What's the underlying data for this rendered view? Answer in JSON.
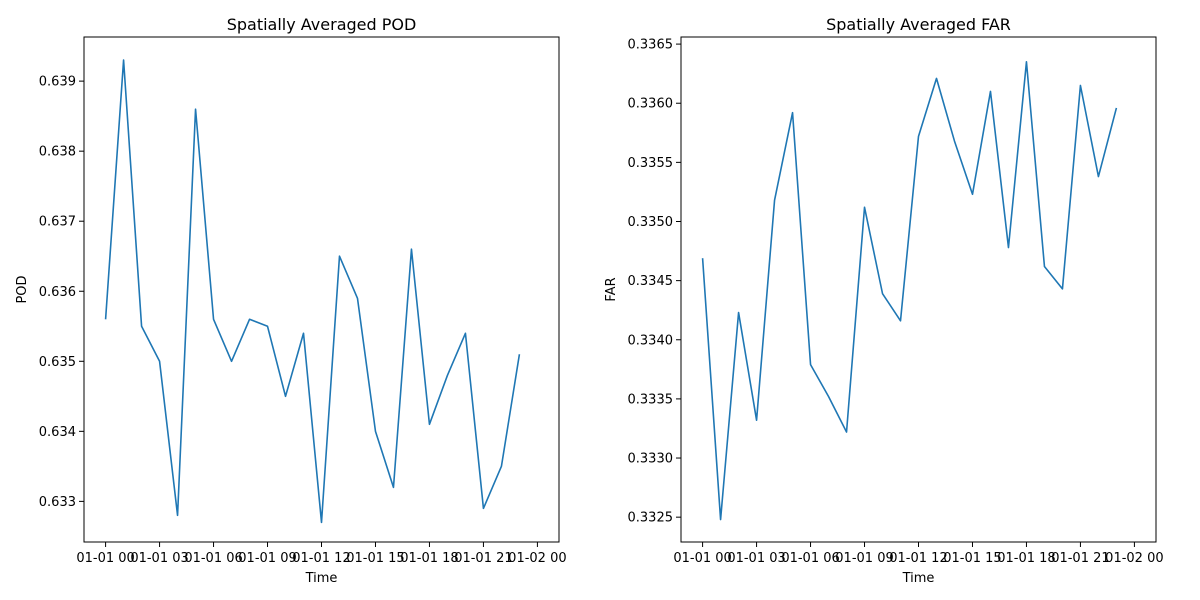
{
  "chart_data": [
    {
      "type": "line",
      "title": "Spatially Averaged POD",
      "xlabel": "Time",
      "ylabel": "POD",
      "x_tick_labels": [
        "01-01 00",
        "01-01 03",
        "01-01 06",
        "01-01 09",
        "01-01 12",
        "01-01 15",
        "01-01 18",
        "01-01 21",
        "01-02 00"
      ],
      "y_tick_labels": [
        "0.633",
        "0.634",
        "0.635",
        "0.636",
        "0.637",
        "0.638",
        "0.639"
      ],
      "y_ticks": [
        0.633,
        0.634,
        0.635,
        0.636,
        0.637,
        0.638,
        0.639
      ],
      "xlim": [
        "2024-01-01 00:00",
        "2024-01-02 00:00"
      ],
      "ylim": [
        0.63242,
        0.63963
      ],
      "x": [
        "2024-01-01 00:00",
        "2024-01-01 01:00",
        "2024-01-01 02:00",
        "2024-01-01 03:00",
        "2024-01-01 04:00",
        "2024-01-01 05:00",
        "2024-01-01 06:00",
        "2024-01-01 07:00",
        "2024-01-01 08:00",
        "2024-01-01 09:00",
        "2024-01-01 10:00",
        "2024-01-01 11:00",
        "2024-01-01 12:00",
        "2024-01-01 13:00",
        "2024-01-01 14:00",
        "2024-01-01 15:00",
        "2024-01-01 16:00",
        "2024-01-01 17:00",
        "2024-01-01 18:00",
        "2024-01-01 19:00",
        "2024-01-01 20:00",
        "2024-01-01 21:00",
        "2024-01-01 22:00",
        "2024-01-01 23:00"
      ],
      "series": [
        {
          "values": [
            0.6356,
            0.6393,
            0.6355,
            0.635,
            0.6328,
            0.6386,
            0.6356,
            0.635,
            0.6356,
            0.6355,
            0.6345,
            0.6354,
            0.6327,
            0.6365,
            0.6359,
            0.634,
            0.6332,
            0.6366,
            0.6341,
            0.6348,
            0.6354,
            0.6329,
            0.6335,
            0.6351
          ]
        }
      ],
      "grid": false,
      "color": "#1f77b4"
    },
    {
      "type": "line",
      "title": "Spatially Averaged FAR",
      "xlabel": "Time",
      "ylabel": "FAR",
      "x_tick_labels": [
        "01-01 00",
        "01-01 03",
        "01-01 06",
        "01-01 09",
        "01-01 12",
        "01-01 15",
        "01-01 18",
        "01-01 21",
        "01-02 00"
      ],
      "y_tick_labels": [
        "0.3325",
        "0.3330",
        "0.3335",
        "0.3340",
        "0.3345",
        "0.3350",
        "0.3355",
        "0.3360",
        "0.3365"
      ],
      "y_ticks": [
        0.3325,
        0.333,
        0.3335,
        0.334,
        0.3345,
        0.335,
        0.3355,
        0.336,
        0.3365
      ],
      "xlim": [
        "2024-01-01 00:00",
        "2024-01-02 00:00"
      ],
      "ylim": [
        0.33229,
        0.33656
      ],
      "x": [
        "2024-01-01 00:00",
        "2024-01-01 01:00",
        "2024-01-01 02:00",
        "2024-01-01 03:00",
        "2024-01-01 04:00",
        "2024-01-01 05:00",
        "2024-01-01 06:00",
        "2024-01-01 07:00",
        "2024-01-01 08:00",
        "2024-01-01 09:00",
        "2024-01-01 10:00",
        "2024-01-01 11:00",
        "2024-01-01 12:00",
        "2024-01-01 13:00",
        "2024-01-01 14:00",
        "2024-01-01 15:00",
        "2024-01-01 16:00",
        "2024-01-01 17:00",
        "2024-01-01 18:00",
        "2024-01-01 19:00",
        "2024-01-01 20:00",
        "2024-01-01 21:00",
        "2024-01-01 22:00",
        "2024-01-01 23:00"
      ],
      "series": [
        {
          "values": [
            0.33469,
            0.33248,
            0.33423,
            0.33332,
            0.33518,
            0.33592,
            0.33379,
            0.33352,
            0.33322,
            0.33512,
            0.33439,
            0.33416,
            0.33572,
            0.33621,
            0.33568,
            0.33523,
            0.3361,
            0.33478,
            0.33635,
            0.33462,
            0.33443,
            0.33615,
            0.33538,
            0.33596
          ]
        }
      ],
      "grid": false,
      "color": "#1f77b4"
    }
  ]
}
